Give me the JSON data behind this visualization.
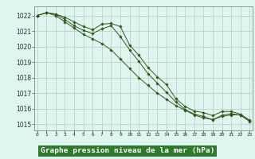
{
  "title": "Graphe pression niveau de la mer (hPa)",
  "x_hours": [
    0,
    1,
    2,
    3,
    4,
    5,
    6,
    7,
    8,
    9,
    10,
    11,
    12,
    13,
    14,
    15,
    16,
    17,
    18,
    19,
    20,
    21,
    22,
    23
  ],
  "series1": [
    1022.0,
    1022.2,
    1022.1,
    1021.9,
    1021.6,
    1021.3,
    1021.1,
    1021.45,
    1021.5,
    1021.3,
    1020.1,
    1019.45,
    1018.65,
    1018.05,
    1017.55,
    1016.65,
    1016.15,
    1015.85,
    1015.75,
    1015.55,
    1015.82,
    1015.82,
    1015.65,
    1015.25
  ],
  "series2": [
    1022.0,
    1022.2,
    1022.1,
    1021.75,
    1021.35,
    1021.05,
    1020.85,
    1021.15,
    1021.35,
    1020.65,
    1019.8,
    1019.05,
    1018.25,
    1017.65,
    1017.05,
    1016.45,
    1015.95,
    1015.65,
    1015.5,
    1015.28,
    1015.58,
    1015.68,
    1015.58,
    1015.18
  ],
  "series3": [
    1022.0,
    1022.2,
    1022.0,
    1021.6,
    1021.2,
    1020.8,
    1020.5,
    1020.2,
    1019.8,
    1019.2,
    1018.6,
    1018.0,
    1017.5,
    1017.0,
    1016.6,
    1016.2,
    1015.9,
    1015.6,
    1015.4,
    1015.3,
    1015.5,
    1015.6,
    1015.6,
    1015.2
  ],
  "line_color": "#2d5a1b",
  "bg_color": "#dff5ef",
  "grid_color": "#b0cfc0",
  "title_bg": "#2d7a2d",
  "title_fg": "#ffffff",
  "ylim_min": 1014.6,
  "ylim_max": 1022.6,
  "yticks": [
    1015,
    1016,
    1017,
    1018,
    1019,
    1020,
    1021,
    1022
  ]
}
